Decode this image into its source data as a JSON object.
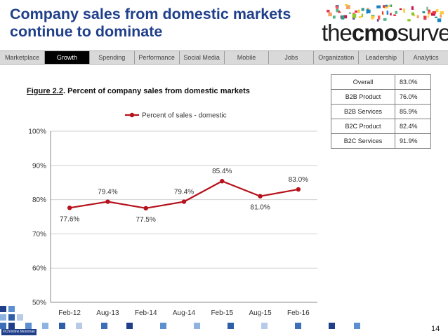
{
  "slide": {
    "title_line1": "Company sales from domestic markets",
    "title_line2": "continue to dominate",
    "page_number": "14",
    "copyright": "©Christine Moorman"
  },
  "logo": {
    "part1": "the",
    "part2": "cmo",
    "part3": "survey"
  },
  "nav": {
    "items": [
      "Marketplace",
      "Growth",
      "Spending",
      "Performance",
      "Social Media",
      "Mobile",
      "Jobs",
      "Organization",
      "Leadership",
      "Analytics"
    ],
    "active": "Growth"
  },
  "figure": {
    "number": "Figure 2.2",
    "caption": ".  Percent of company sales from domestic markets"
  },
  "summary_table": [
    {
      "label": "Overall",
      "value": "83.0%"
    },
    {
      "label": "B2B Product",
      "value": "76.0%"
    },
    {
      "label": "B2B Services",
      "value": "85.9%"
    },
    {
      "label": "B2C Product",
      "value": "82.4%"
    },
    {
      "label": "B2C Services",
      "value": "91.9%"
    }
  ],
  "chart_data": {
    "type": "line",
    "categories": [
      "Feb-12",
      "Aug-13",
      "Feb-14",
      "Aug-14",
      "Feb-15",
      "Aug-15",
      "Feb-16"
    ],
    "series": [
      {
        "name": "Percent of sales - domestic",
        "values": [
          77.6,
          79.4,
          77.5,
          79.4,
          85.4,
          81.0,
          83.0
        ],
        "color": "#b5121b"
      }
    ],
    "data_labels": [
      "77.6%",
      "79.4%",
      "77.5%",
      "79.4%",
      "85.4%",
      "81.0%",
      "83.0%"
    ],
    "ylim": [
      50,
      100
    ],
    "yticks": [
      50,
      60,
      70,
      80,
      90,
      100
    ],
    "ytick_labels": [
      "50%",
      "60%",
      "70%",
      "80%",
      "90%",
      "100%"
    ],
    "grid": true,
    "legend": "top-center"
  },
  "colors": {
    "title": "#1f3f8a",
    "line": "#b5121b",
    "nav_active": "#000000"
  }
}
